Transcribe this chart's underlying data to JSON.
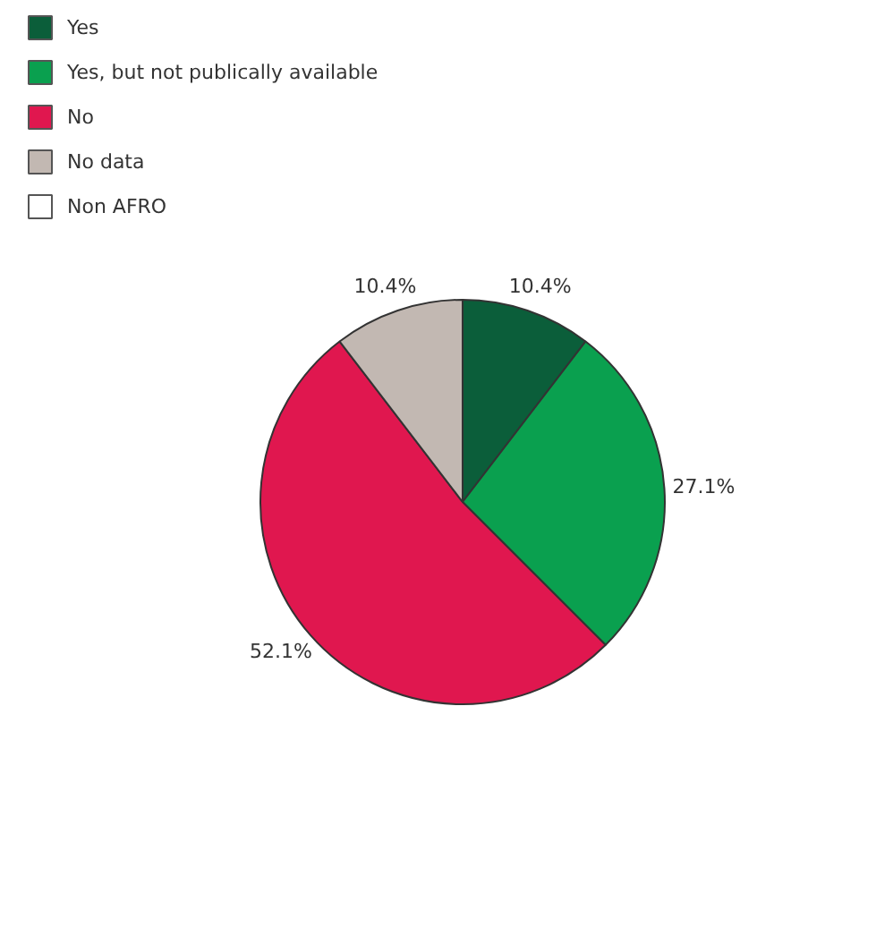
{
  "chart_data": {
    "type": "pie",
    "categories": [
      "Yes",
      "Yes, but not publically available",
      "No",
      "No data",
      "Non AFRO"
    ],
    "values": [
      10.4,
      27.1,
      52.1,
      10.4,
      0
    ],
    "colors": [
      "#0b5e3a",
      "#0aa04f",
      "#e0174f",
      "#c2b8b2",
      "#ffffff"
    ],
    "value_labels": [
      "10.4%",
      "27.1%",
      "52.1%",
      "10.4%",
      null
    ],
    "legend": "top left"
  }
}
